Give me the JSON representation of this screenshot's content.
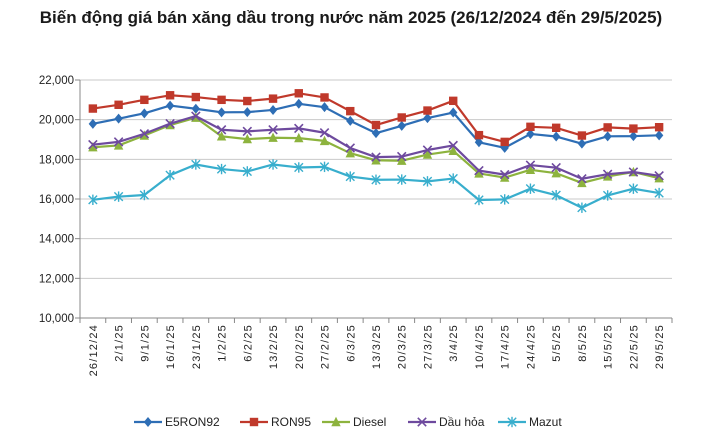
{
  "chart_data": {
    "type": "line",
    "title": "Biến động giá bán xăng dầu trong nước năm 2025 (26/12/2024 đến 29/5/2025)",
    "xlabel": "",
    "ylabel": "",
    "ylim": [
      10000,
      22000
    ],
    "y_ticks": [
      "10,000",
      "12,000",
      "14,000",
      "16,000",
      "18,000",
      "20,000",
      "22,000"
    ],
    "y_tick_values": [
      10000,
      12000,
      14000,
      16000,
      18000,
      20000,
      22000
    ],
    "grid": true,
    "legend_position": "bottom",
    "x": [
      "26/12/24",
      "2/1/25",
      "9/1/25",
      "16/1/25",
      "23/1/25",
      "1/2/25",
      "6/2/25",
      "13/2/25",
      "20/2/25",
      "27/2/25",
      "6/3/25",
      "13/3/25",
      "20/3/25",
      "27/3/25",
      "3/4/25",
      "10/4/25",
      "17/4/25",
      "24/4/25",
      "5/5/25",
      "8/5/25",
      "15/5/25",
      "22/5/25",
      "29/5/25"
    ],
    "series": [
      {
        "name": "E5RON92",
        "color": "#2E6EB5",
        "marker": "diamond",
        "values": [
          19790,
          20050,
          20320,
          20710,
          20550,
          20370,
          20380,
          20490,
          20800,
          20630,
          19940,
          19320,
          19690,
          20080,
          20360,
          18860,
          18580,
          19280,
          19150,
          18790,
          19160,
          19170,
          19210
        ]
      },
      {
        "name": "RON95",
        "color": "#C0392B",
        "marker": "square",
        "values": [
          20560,
          20750,
          21000,
          21230,
          21140,
          21000,
          20940,
          21060,
          21330,
          21120,
          20430,
          19730,
          20110,
          20460,
          20950,
          19220,
          18880,
          19640,
          19590,
          19200,
          19610,
          19550,
          19620
        ]
      },
      {
        "name": "Diesel",
        "color": "#8DB33E",
        "marker": "triangle",
        "values": [
          18610,
          18700,
          19200,
          19730,
          20100,
          19160,
          19020,
          19090,
          19070,
          18930,
          18310,
          17950,
          17930,
          18240,
          18430,
          17290,
          17080,
          17470,
          17300,
          16810,
          17140,
          17360,
          17050
        ]
      },
      {
        "name": "Dầu hỏa",
        "color": "#6E4A9E",
        "marker": "x",
        "values": [
          18740,
          18880,
          19290,
          19800,
          20180,
          19490,
          19410,
          19490,
          19560,
          19340,
          18570,
          18110,
          18140,
          18470,
          18700,
          17430,
          17230,
          17710,
          17580,
          17020,
          17250,
          17360,
          17170
        ]
      },
      {
        "name": "Mazut",
        "color": "#38AECD",
        "marker": "star",
        "values": [
          15960,
          16120,
          16200,
          17200,
          17740,
          17510,
          17390,
          17740,
          17590,
          17620,
          17130,
          16970,
          16980,
          16890,
          17030,
          15950,
          15980,
          16520,
          16190,
          15560,
          16180,
          16520,
          16300
        ]
      }
    ]
  }
}
